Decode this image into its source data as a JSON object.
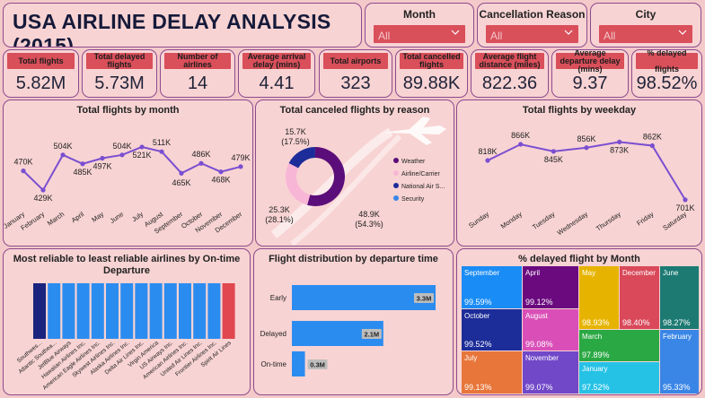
{
  "title": "USA AIRLINE DELAY ANALYSIS (2015)",
  "filters": [
    {
      "label": "Month",
      "value": "All"
    },
    {
      "label": "Cancellation Reason",
      "value": "All"
    },
    {
      "label": "City",
      "value": "All"
    }
  ],
  "kpis": [
    {
      "label": "Total flights",
      "value": "5.82M"
    },
    {
      "label": "Total delayed flights",
      "value": "5.73M"
    },
    {
      "label": "Number of airlines",
      "value": "14"
    },
    {
      "label": "Average arrival delay (mins)",
      "value": "4.41"
    },
    {
      "label": "Total airports",
      "value": "323"
    },
    {
      "label": "Total cancelled flights",
      "value": "89.88K"
    },
    {
      "label": "Average flight distance (miles)",
      "value": "822.36"
    },
    {
      "label": "Average departure delay (mins)",
      "value": "9.37"
    },
    {
      "label": "% delayed flights",
      "value": "98.52%"
    }
  ],
  "colors": {
    "background": "#f4c9c9",
    "panel": "#f8d3d3",
    "border": "#8d4a8f",
    "accent_red": "#d94f5a",
    "line_purple": "#7a4fd1",
    "bar_blue": "#2b8cf0"
  },
  "chart_data": [
    {
      "type": "line",
      "title": "Total flights by month",
      "categories": [
        "January",
        "February",
        "March",
        "April",
        "May",
        "June",
        "July",
        "August",
        "September",
        "October",
        "November",
        "December"
      ],
      "values": [
        470,
        429,
        504,
        485,
        497,
        504,
        521,
        511,
        465,
        486,
        468,
        479
      ],
      "labels": [
        "470K",
        "429K",
        "504K",
        "485K",
        "497K",
        "504K",
        "521K",
        "511K",
        "465K",
        "486K",
        "468K",
        "479K"
      ],
      "ylim": [
        410,
        540
      ]
    },
    {
      "type": "pie",
      "title": "Total canceled flights by reason",
      "categories": [
        "Weather",
        "Airline/Carrier",
        "National Air S...",
        "Security"
      ],
      "values": [
        48.9,
        25.3,
        15.7,
        0.02
      ],
      "slice_labels": [
        "48.9K",
        "25.3K",
        "15.7K",
        ""
      ],
      "slice_percents": [
        "(54.3%)",
        "(28.1%)",
        "(17.5%)",
        ""
      ],
      "colors": [
        "#5b0e7a",
        "#f8b6d6",
        "#1c2c98",
        "#3a86e6"
      ]
    },
    {
      "type": "line",
      "title": "Total flights by weekday",
      "categories": [
        "Sunday",
        "Monday",
        "Tuesday",
        "Wednesday",
        "Thursday",
        "Friday",
        "Saturday"
      ],
      "values": [
        818,
        866,
        845,
        856,
        873,
        862,
        701
      ],
      "labels": [
        "818K",
        "866K",
        "845K",
        "856K",
        "873K",
        "862K",
        "701K"
      ],
      "ylim": [
        690,
        890
      ]
    },
    {
      "type": "bar",
      "title": "Most reliable to least reliable airlines by On-time Departure",
      "categories": [
        "Southwes...",
        "Atlantic Southea...",
        "JetBlue Airways",
        "Hawaiian Airlines Inc.",
        "American Eagle Airlines Inc.",
        "Skywest Airlines Inc.",
        "Alaska Airlines Inc.",
        "Delta Air Lines Inc.",
        "Virgin America",
        "US Airways Inc.",
        "American Airlines Inc.",
        "United Air Lines Inc.",
        "Frontier Airlines Inc.",
        "Spirit Air Lines"
      ],
      "values": [
        1,
        1,
        1,
        1,
        1,
        1,
        1,
        1,
        1,
        1,
        1,
        1,
        1,
        1
      ],
      "colors": [
        "#1a237e",
        "#2b8cf0",
        "#2b8cf0",
        "#2b8cf0",
        "#2b8cf0",
        "#2b8cf0",
        "#2b8cf0",
        "#2b8cf0",
        "#2b8cf0",
        "#2b8cf0",
        "#2b8cf0",
        "#2b8cf0",
        "#2b8cf0",
        "#e0474f"
      ]
    },
    {
      "type": "bar",
      "title": "Flight distribution by departure time",
      "orientation": "horizontal",
      "categories": [
        "Early",
        "Delayed",
        "On-time"
      ],
      "values": [
        3.3,
        2.1,
        0.3
      ],
      "labels": [
        "3.3M",
        "2.1M",
        "0.3M"
      ],
      "xlim": [
        0,
        3.3
      ]
    },
    {
      "type": "heatmap",
      "title": "% delayed flight by Month",
      "categories": [
        "September",
        "April",
        "May",
        "December",
        "June",
        "October",
        "August",
        "March",
        "February",
        "January",
        "July",
        "November"
      ],
      "labels": [
        "99.59%",
        "99.12%",
        "98.93%",
        "98.40%",
        "98.27%",
        "99.52%",
        "99.08%",
        "97.89%",
        "95.33%",
        "97.52%",
        "99.13%",
        "99.07%"
      ],
      "values": [
        99.59,
        99.12,
        98.93,
        98.4,
        98.27,
        99.52,
        99.08,
        97.89,
        95.33,
        97.52,
        99.13,
        99.07
      ],
      "colors": [
        "#1a8cf5",
        "#6b0a7f",
        "#e6b400",
        "#d9495a",
        "#1c7a73",
        "#1c2c98",
        "#d94fb7",
        "#2aa843",
        "#3a86e6",
        "#26c2e6",
        "#e8763a",
        "#7048c8"
      ]
    }
  ]
}
